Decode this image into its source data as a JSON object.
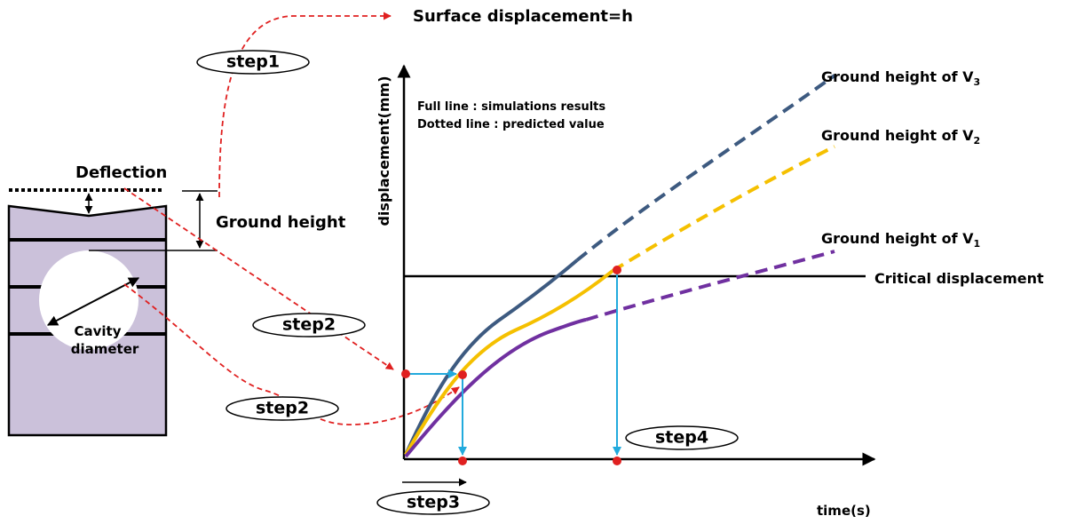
{
  "title": "Surface displacement=h",
  "steps": {
    "step1": "step1",
    "step2_upper": "step2",
    "step2_lower": "step2",
    "step3": "step3",
    "step4": "step4"
  },
  "block": {
    "deflection": "Deflection",
    "ground_height": "Ground height",
    "cavity_diameter": [
      "Cavity",
      "diameter"
    ]
  },
  "chart": {
    "y_axis_label": "displacement(mm)",
    "x_axis_label": "time(s)",
    "legend": [
      "Full line : simulations results",
      "Dotted line : predicted value"
    ],
    "curves": [
      {
        "label": "Ground height of V",
        "subscript": "3",
        "color": "#3d5a80"
      },
      {
        "label": "Ground height of V",
        "subscript": "2",
        "color": "#f5c000"
      },
      {
        "label": "Ground height of V",
        "subscript": "1",
        "color": "#7030a0"
      }
    ],
    "critical_line": "Critical displacement"
  }
}
